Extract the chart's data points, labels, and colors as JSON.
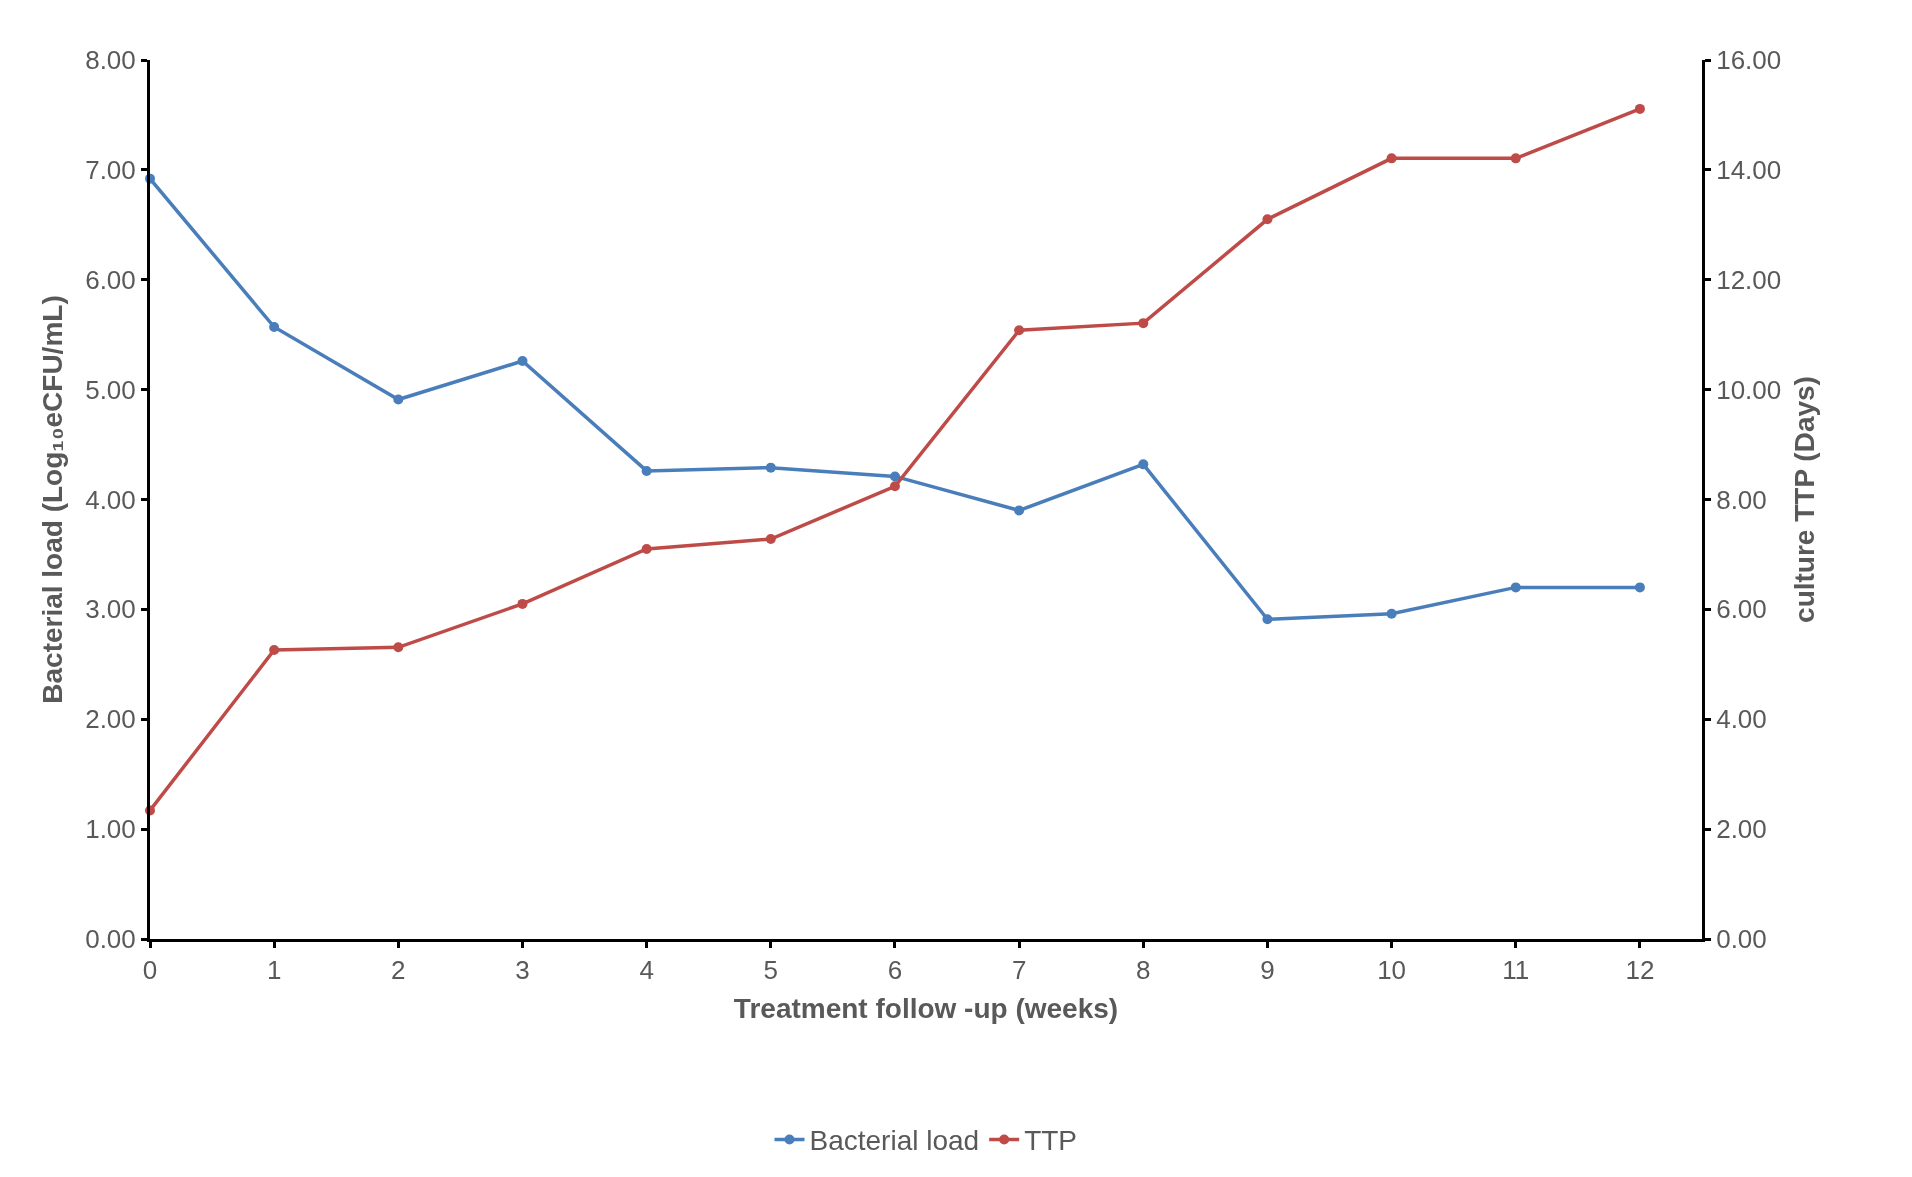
{
  "chart_data": {
    "type": "line",
    "xlabel": "Treatment follow -up (weeks)",
    "ylabel": "Bacterial load (Log₁₀eCFU/mL)",
    "y2label": "culture TTP (Days)",
    "x": [
      0,
      1,
      2,
      3,
      4,
      5,
      6,
      7,
      8,
      9,
      10,
      11,
      12
    ],
    "xlim": [
      0,
      12.5
    ],
    "xticks": [
      0,
      1,
      2,
      3,
      4,
      5,
      6,
      7,
      8,
      9,
      10,
      11,
      12
    ],
    "ylim": [
      0,
      8
    ],
    "yticks": [
      {
        "value": 0,
        "label": "0.00"
      },
      {
        "value": 1,
        "label": "1.00"
      },
      {
        "value": 2,
        "label": "2.00"
      },
      {
        "value": 3,
        "label": "3.00"
      },
      {
        "value": 4,
        "label": "4.00"
      },
      {
        "value": 5,
        "label": "5.00"
      },
      {
        "value": 6,
        "label": "6.00"
      },
      {
        "value": 7,
        "label": "7.00"
      },
      {
        "value": 8,
        "label": "8.00"
      }
    ],
    "y2lim": [
      0,
      16
    ],
    "y2ticks": [
      {
        "value": 0,
        "label": "0.00"
      },
      {
        "value": 2,
        "label": "2.00"
      },
      {
        "value": 4,
        "label": "4.00"
      },
      {
        "value": 6,
        "label": "6.00"
      },
      {
        "value": 8,
        "label": "8.00"
      },
      {
        "value": 10,
        "label": "10.00"
      },
      {
        "value": 12,
        "label": "12.00"
      },
      {
        "value": 14,
        "label": "14.00"
      },
      {
        "value": 16,
        "label": "16.00"
      }
    ],
    "series": [
      {
        "name": "Bacterial load",
        "color": "#4a7ebb",
        "values": [
          6.92,
          5.57,
          4.91,
          5.26,
          4.26,
          4.29,
          4.21,
          3.9,
          4.32,
          2.91,
          2.96,
          3.2,
          3.2
        ]
      },
      {
        "name": "TTP",
        "color": "#be4b48",
        "axis": "y2",
        "values": [
          2.34,
          5.26,
          5.31,
          6.1,
          7.1,
          7.28,
          8.24,
          11.08,
          11.21,
          13.1,
          14.21,
          14.21,
          15.11
        ]
      }
    ],
    "legend": "bottom",
    "marker": "circle",
    "line_style": "solid"
  }
}
